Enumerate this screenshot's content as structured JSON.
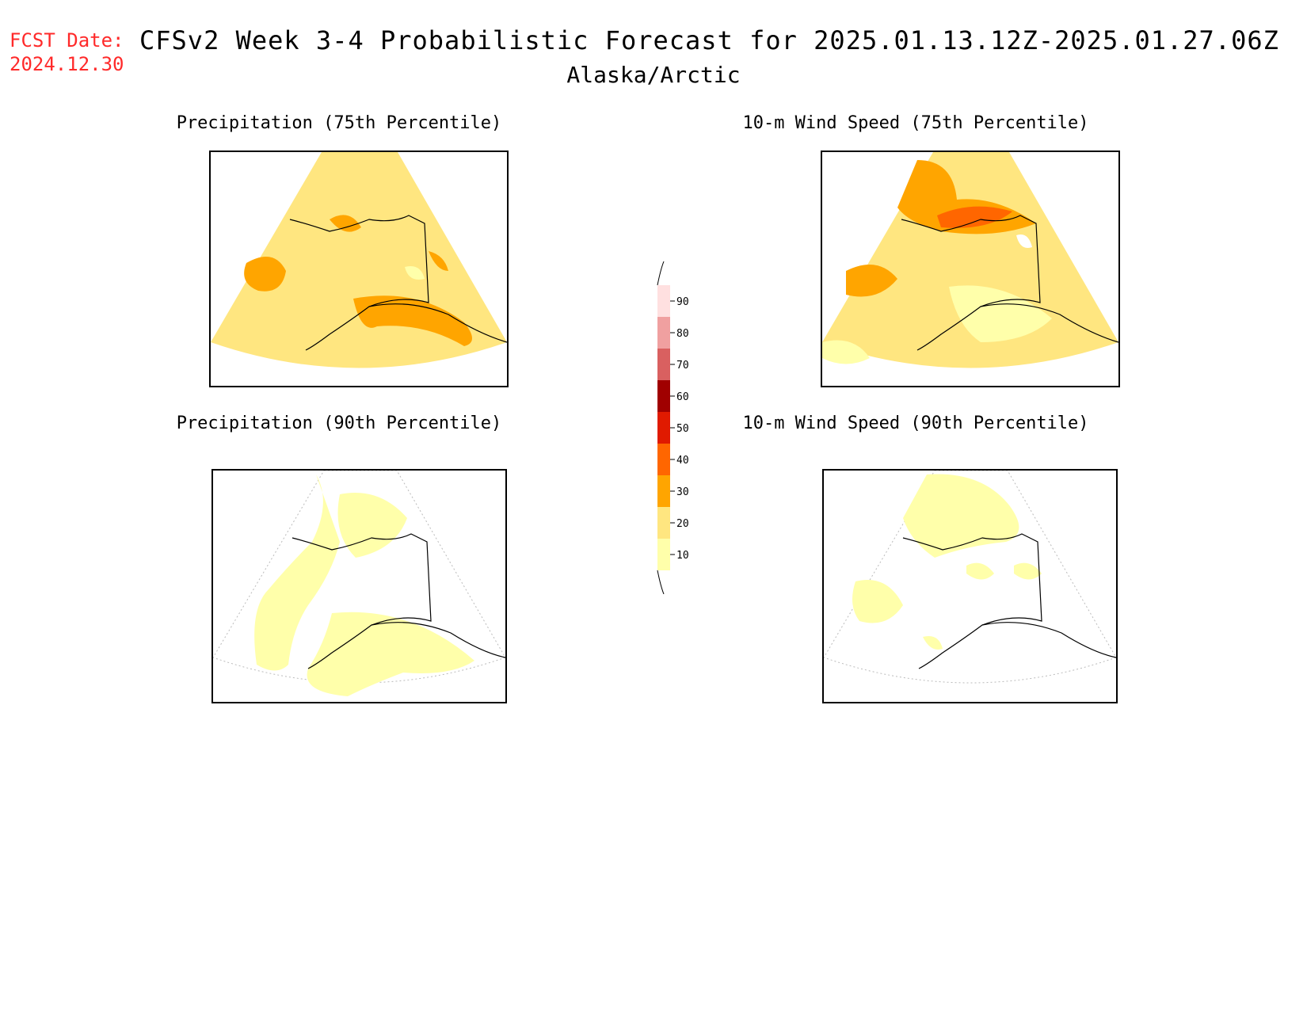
{
  "header": {
    "fcst_label": "FCST Date:",
    "fcst_date": "2024.12.30",
    "title": "CFSv2 Week 3-4 Probabilistic Forecast for 2025.01.13.12Z-2025.01.27.06Z",
    "region": "Alaska/Arctic"
  },
  "panels": [
    {
      "title": "Precipitation (75th Percentile)",
      "base_color": "#ffe680"
    },
    {
      "title": "10-m Wind Speed (75th Percentile)",
      "base_color": "#ffe680"
    },
    {
      "title": "Precipitation (90th Percentile)",
      "base_color": "#ffffff"
    },
    {
      "title": "10-m Wind Speed (90th Percentile)",
      "base_color": "#ffffff"
    }
  ],
  "colorbar": {
    "levels": [
      "10",
      "20",
      "30",
      "40",
      "50",
      "60",
      "70",
      "80",
      "90"
    ],
    "colors": [
      "#ffffaa",
      "#ffe680",
      "#ffa500",
      "#ff6600",
      "#e01a00",
      "#a00000",
      "#d96060",
      "#f0a0a0",
      "#ffe0e0"
    ]
  },
  "palette": {
    "light_yellow": "#ffffaa",
    "yellow": "#ffe680",
    "orange": "#ffa500",
    "dark_orange": "#ff6600"
  }
}
